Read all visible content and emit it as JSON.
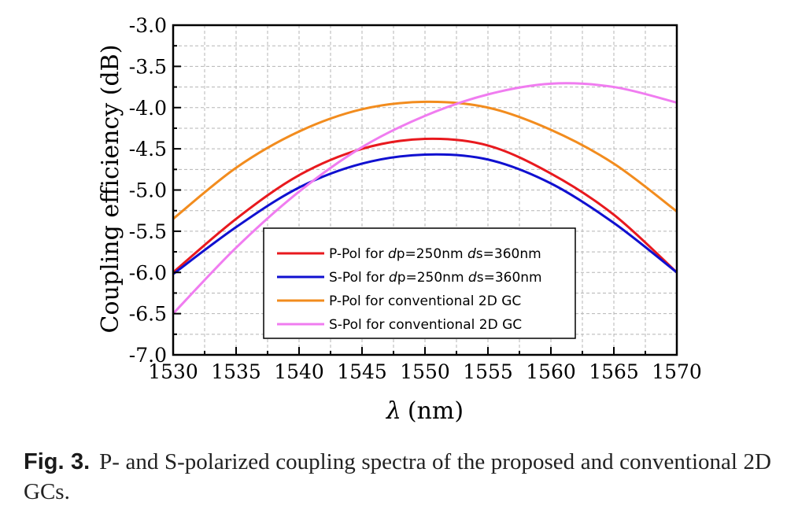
{
  "chart_data": {
    "type": "line",
    "title": "",
    "xlabel": "(nm)",
    "xlabel_symbol": "λ",
    "ylabel": "Coupling efficiency (dB)",
    "xlim": [
      1530,
      1570
    ],
    "ylim": [
      -7.0,
      -3.0
    ],
    "xticks": [
      "1530",
      "1535",
      "1540",
      "1545",
      "1550",
      "1555",
      "1560",
      "1565",
      "1570"
    ],
    "yticks": [
      "-3.0",
      "-3.5",
      "-4.0",
      "-4.5",
      "-5.0",
      "-5.5",
      "-6.0",
      "-6.5",
      "-7.0"
    ],
    "grid": true,
    "legend_position": "bottom-center",
    "series": [
      {
        "name": "P-Pol for dp=250nm ds=360nm",
        "legend_parts": [
          [
            "P-Pol for ",
            false
          ],
          [
            "d",
            true
          ],
          [
            "p=250nm ",
            false
          ],
          [
            "d",
            true
          ],
          [
            "s=360nm",
            false
          ]
        ],
        "color": "#e8191e",
        "x": [
          1530,
          1535,
          1540,
          1545,
          1550,
          1555,
          1560,
          1565,
          1570
        ],
        "y": [
          -6.0,
          -5.35,
          -4.82,
          -4.5,
          -4.38,
          -4.46,
          -4.8,
          -5.3,
          -6.0
        ]
      },
      {
        "name": "S-Pol for dp=250nm ds=360nm",
        "legend_parts": [
          [
            "S-Pol for ",
            false
          ],
          [
            "d",
            true
          ],
          [
            "p=250nm ",
            false
          ],
          [
            "d",
            true
          ],
          [
            "s=360nm",
            false
          ]
        ],
        "color": "#1010d0",
        "x": [
          1530,
          1535,
          1540,
          1545,
          1550,
          1555,
          1560,
          1565,
          1570
        ],
        "y": [
          -6.02,
          -5.45,
          -4.97,
          -4.68,
          -4.57,
          -4.63,
          -4.92,
          -5.4,
          -6.0
        ]
      },
      {
        "name": "P-Pol for conventional 2D GC",
        "legend_parts": [
          [
            "P-Pol for conventional 2D GC",
            false
          ]
        ],
        "color": "#f28c1e",
        "x": [
          1530,
          1535,
          1540,
          1545,
          1550,
          1555,
          1560,
          1565,
          1570
        ],
        "y": [
          -5.35,
          -4.73,
          -4.29,
          -4.02,
          -3.93,
          -4.0,
          -4.27,
          -4.68,
          -5.26
        ]
      },
      {
        "name": "S-Pol for conventional 2D GC",
        "legend_parts": [
          [
            "S-Pol for conventional 2D GC",
            false
          ]
        ],
        "color": "#f07cf0",
        "x": [
          1530,
          1535,
          1540,
          1545,
          1550,
          1555,
          1560,
          1565,
          1570
        ],
        "y": [
          -6.5,
          -5.7,
          -5.02,
          -4.48,
          -4.1,
          -3.84,
          -3.71,
          -3.75,
          -3.94
        ]
      }
    ]
  },
  "caption": {
    "label": "Fig. 3.",
    "text": "P- and S-polarized coupling spectra of the proposed and conventional 2D GCs."
  }
}
